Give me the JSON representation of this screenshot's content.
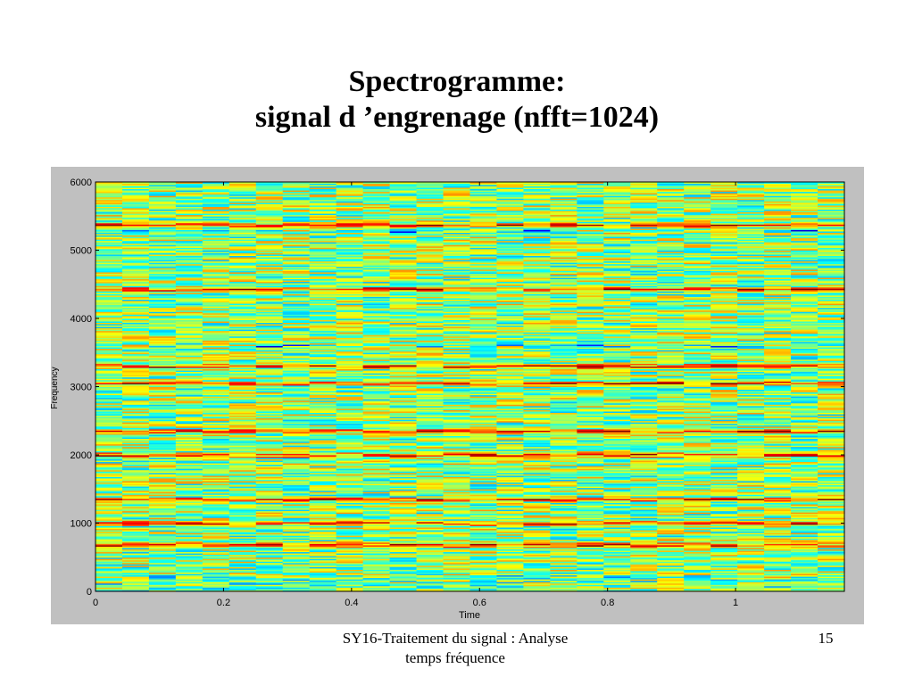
{
  "slide": {
    "title_line1": "Spectrogramme:",
    "title_line2": "signal d ’engrenage (nfft=1024)",
    "footer_line1": "SY16-Traitement du signal : Analyse",
    "footer_line2": "temps fréquence",
    "page_number": "15"
  },
  "chart_data": {
    "type": "heatmap",
    "title": "",
    "xlabel": "Time",
    "ylabel": "Frequency",
    "xlim": [
      0,
      1.17
    ],
    "ylim": [
      0,
      6000
    ],
    "x_ticks": [
      0,
      0.2,
      0.4,
      0.6,
      0.8,
      1
    ],
    "x_tick_labels": [
      "0",
      "0.2",
      "0.4",
      "0.6",
      "0.8",
      "1"
    ],
    "y_ticks": [
      0,
      1000,
      2000,
      3000,
      4000,
      5000,
      6000
    ],
    "y_tick_labels": [
      "0",
      "1000",
      "2000",
      "3000",
      "4000",
      "5000",
      "6000"
    ],
    "colormap": "jet",
    "time_frames": 28,
    "frequency_bins": 300,
    "dominant_bands_hz": [
      680,
      1000,
      1350,
      2000,
      2350,
      3050,
      3300,
      4430,
      5370
    ],
    "weak_bands_hz": [
      3600,
      5280
    ],
    "colors": {
      "panel_background": "#c0c0c0",
      "axes_background": "#ffffff"
    }
  }
}
